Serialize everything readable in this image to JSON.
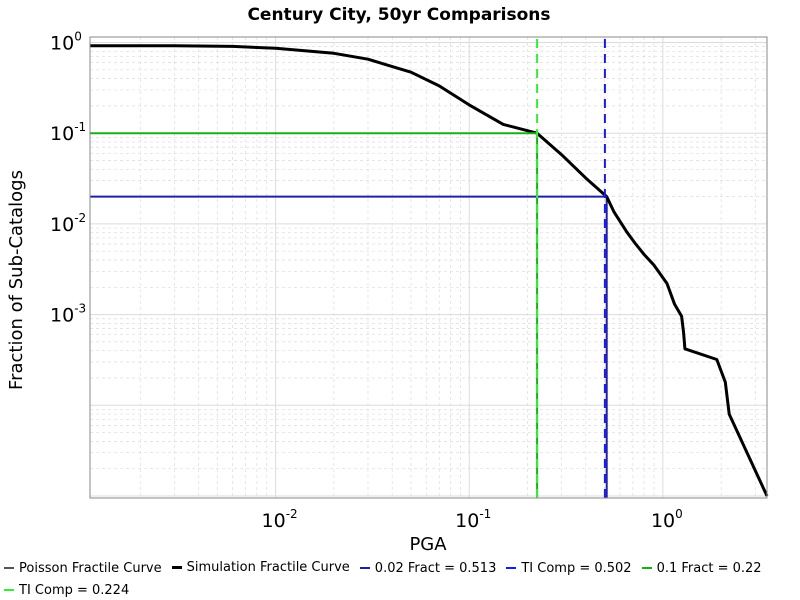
{
  "chart_data": {
    "type": "line",
    "title": "Century City, 50yr Comparisons",
    "xlabel": "PGA",
    "ylabel": "Fraction of Sub-Catalogs",
    "x_scale": "log",
    "y_scale": "log",
    "xlim": [
      0.0011,
      3.45
    ],
    "ylim": [
      9.5e-06,
      1.15
    ],
    "grid": true,
    "x_ticks": [
      {
        "value": 0.01,
        "base": "10",
        "exp": "-2"
      },
      {
        "value": 0.1,
        "base": "10",
        "exp": "-1"
      },
      {
        "value": 1,
        "base": "10",
        "exp": "0"
      }
    ],
    "y_ticks": [
      {
        "value": 1,
        "base": "10",
        "exp": "0"
      },
      {
        "value": 0.1,
        "base": "10",
        "exp": "-1"
      },
      {
        "value": 0.01,
        "base": "10",
        "exp": "-2"
      },
      {
        "value": 0.001,
        "base": "10",
        "exp": "-3"
      }
    ],
    "series": [
      {
        "name": "Poisson Fractile Curve",
        "color": "#555555",
        "dash": "dashed",
        "points": []
      },
      {
        "name": "Simulation Fractile Curve",
        "color": "#000000",
        "dash": "solid",
        "points": [
          [
            0.0011,
            0.921
          ],
          [
            0.003,
            0.919
          ],
          [
            0.006,
            0.905
          ],
          [
            0.01,
            0.863
          ],
          [
            0.02,
            0.76
          ],
          [
            0.03,
            0.654
          ],
          [
            0.05,
            0.47
          ],
          [
            0.07,
            0.332
          ],
          [
            0.1,
            0.205
          ],
          [
            0.15,
            0.125
          ],
          [
            0.224,
            0.1
          ],
          [
            0.3,
            0.058
          ],
          [
            0.4,
            0.032
          ],
          [
            0.513,
            0.02
          ],
          [
            0.56,
            0.0135
          ],
          [
            0.65,
            0.0082
          ],
          [
            0.72,
            0.0061
          ],
          [
            0.8,
            0.0046
          ],
          [
            0.9,
            0.0035
          ],
          [
            1.05,
            0.0022
          ],
          [
            1.15,
            0.0013
          ],
          [
            1.25,
            0.00096
          ],
          [
            1.28,
            0.00063
          ],
          [
            1.3,
            0.00042
          ],
          [
            1.9,
            0.00032
          ],
          [
            2.1,
            0.00018
          ],
          [
            2.2,
            8e-05
          ],
          [
            3.45,
            1e-05
          ]
        ]
      },
      {
        "name": "0.02 Fract = 0.513",
        "color": "#1f1fa8",
        "dash": "solid",
        "points": [
          [
            0.0011,
            0.02
          ],
          [
            0.513,
            0.02
          ]
        ]
      },
      {
        "name": "TI Comp = 0.502",
        "color": "#1a1ae0",
        "dash": "dashed",
        "points": [
          [
            0.502,
            9.5e-06
          ],
          [
            0.502,
            1.15
          ]
        ]
      },
      {
        "name": "0.1 Fract = 0.224",
        "color": "#18b018",
        "dash": "solid",
        "points": [
          [
            0.0011,
            0.1
          ],
          [
            0.224,
            0.1
          ]
        ]
      },
      {
        "name": "TI Comp = 0.224",
        "color": "#33ee33",
        "dash": "dashed",
        "points": [
          [
            0.224,
            9.5e-06
          ],
          [
            0.224,
            1.15
          ]
        ]
      }
    ],
    "extra_series_lines": [
      {
        "color": "#1f1fa8",
        "dash": "solid",
        "points": [
          [
            0.513,
            9.5e-06
          ],
          [
            0.513,
            0.02
          ]
        ]
      },
      {
        "color": "#18b018",
        "dash": "solid",
        "points": [
          [
            0.224,
            9.5e-06
          ],
          [
            0.224,
            0.1
          ]
        ]
      }
    ],
    "legend_position": "bottom",
    "legend_rows": [
      [
        "Poisson Fractile Curve",
        "Simulation Fractile Curve",
        "0.02 Fract = 0.513",
        "TI Comp = 0.502",
        "0.1 Fract = 0.22"
      ],
      [
        "TI Comp = 0.224"
      ]
    ]
  }
}
